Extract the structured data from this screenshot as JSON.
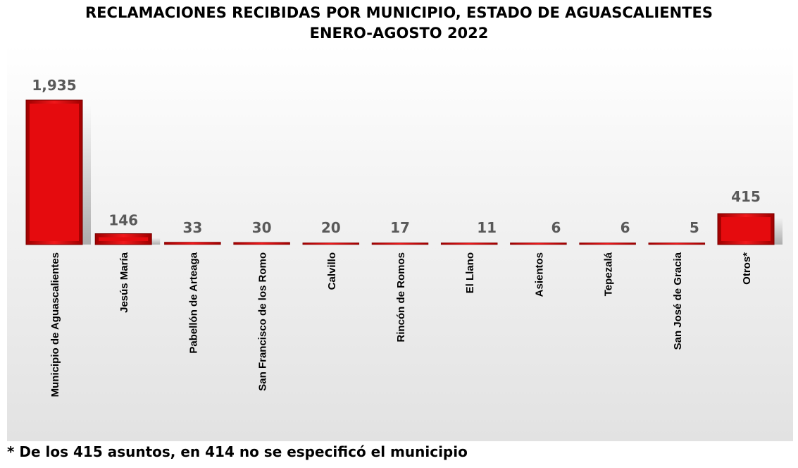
{
  "chart_data": {
    "type": "bar",
    "title": "RECLAMACIONES RECIBIDAS POR MUNICIPIO, ESTADO DE AGUASCALIENTES",
    "subtitle": "ENERO-AGOSTO 2022",
    "categories": [
      "Municipio de Aguascalientes",
      "Jesús María",
      "Pabellón de Arteaga",
      "San Francisco de los Romo",
      "Calvillo",
      "Rincón de Romos",
      "El Llano",
      "Asientos",
      "Tepezalá",
      "San José de Gracia",
      "Otros*"
    ],
    "values": [
      1935,
      146,
      33,
      30,
      20,
      17,
      11,
      6,
      6,
      5,
      415
    ],
    "value_labels": [
      "1,935",
      "146",
      "33",
      "30",
      "20",
      "17",
      "11",
      "6",
      "6",
      "5",
      "415"
    ],
    "ylim": [
      0,
      1935
    ],
    "grid": false,
    "bar_color": "#e0080b"
  },
  "footnote": "* De los 415 asuntos, en 414 no se especificó el municipio"
}
